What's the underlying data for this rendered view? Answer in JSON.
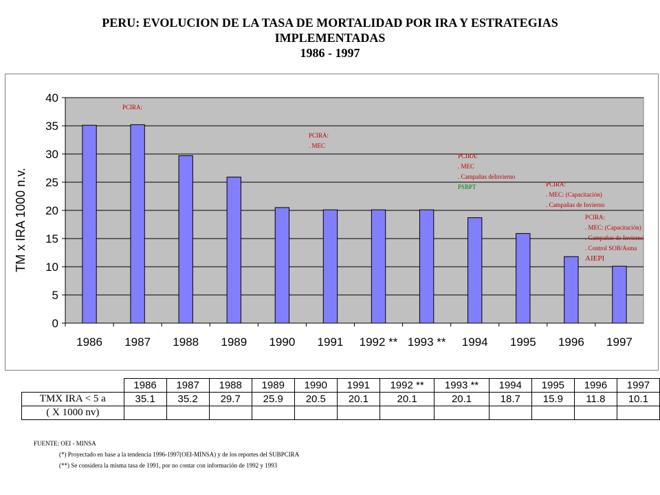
{
  "title": {
    "line1": "PERU: EVOLUCION  DE LA TASA DE MORTALIDAD POR IRA Y ESTRATEGIAS",
    "line2": "IMPLEMENTADAS",
    "line3": "1986 - 1997"
  },
  "chart_data": {
    "type": "bar",
    "categories": [
      "1986",
      "1987",
      "1988",
      "1989",
      "1990",
      "1991",
      "1992 **",
      "1993 **",
      "1994",
      "1995",
      "1996",
      "1997"
    ],
    "values": [
      35.1,
      35.2,
      29.7,
      25.9,
      20.5,
      20.1,
      20.1,
      20.1,
      18.7,
      15.9,
      11.8,
      10.1
    ],
    "ylabel": "TM x IRA 1000 n.v.",
    "ylim": [
      0,
      40
    ],
    "yticks": [
      0,
      5,
      10,
      15,
      20,
      25,
      30,
      35,
      40
    ],
    "grid": true,
    "bar_color": "#8080ff",
    "plot_background": "#c0c0c0",
    "annotations": [
      {
        "lines": [
          {
            "text": "PCIRA:",
            "color": "#c00000"
          }
        ]
      },
      {
        "lines": [
          {
            "text": "PCIRA:",
            "color": "#c00000"
          },
          {
            "text": ".  MEC",
            "color": "#c00000"
          }
        ]
      },
      {
        "lines": [
          {
            "text": "PCIRA:",
            "color": "#c00000"
          },
          {
            "text": ". MEC",
            "color": "#c00000"
          },
          {
            "text": ". Campañas deInvierno",
            "color": "#c00000"
          },
          {
            "text": "PSBPT",
            "color": "#008000"
          }
        ]
      },
      {
        "lines": [
          {
            "text": "PCIRA:",
            "color": "#c00000"
          },
          {
            "text": ". MEC: (Capacitación)",
            "color": "#c00000"
          },
          {
            "text": ". Campañas de Invierno",
            "color": "#c00000"
          }
        ]
      },
      {
        "lines": [
          {
            "text": "PCIRA:",
            "color": "#c00000"
          },
          {
            "text": ". MEC: (Capacitación)",
            "color": "#c00000"
          },
          {
            "text": ". Campañas de Invierno",
            "color": "#c00000"
          },
          {
            "text": ". Control SOB/Asma",
            "color": "#c00000"
          },
          {
            "text": "AIEPI",
            "color": "#c00000"
          }
        ]
      }
    ]
  },
  "table": {
    "headers": [
      "1986",
      "1987",
      "1988",
      "1989",
      "1990",
      "1991",
      "1992 **",
      "1993 **",
      "1994",
      "1995",
      "1996",
      "1997"
    ],
    "row_label_1": "TMX IRA < 5 a",
    "row_label_2": "( X 1000 nv)",
    "values": [
      "35.1",
      "35.2",
      "29.7",
      "25.9",
      "20.5",
      "20.1",
      "20.1",
      "20.1",
      "18.7",
      "15.9",
      "11.8",
      "10.1"
    ]
  },
  "footnotes": {
    "source": "FUENTE: OEI - MINSA",
    "note1": "(*) Proyectado en base a la tendencia 1996-1997(OEI-MINSA) y de los reportes del SUBPCIRA",
    "note2": "(**) Se considera la misma tasa de 1991, por no contar con información de 1992 y 1993"
  }
}
